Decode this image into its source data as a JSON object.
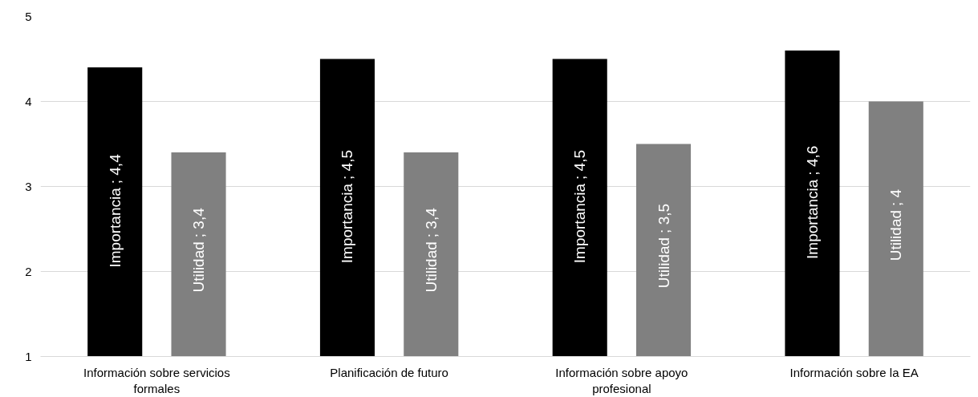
{
  "chart_data": {
    "type": "bar",
    "categories": [
      "Información sobre servicios formales",
      "Planificación de futuro",
      "Información sobre apoyo profesional",
      "Información sobre la EA"
    ],
    "series": [
      {
        "name": "Importancia",
        "color": "#000000",
        "values": [
          4.4,
          4.5,
          4.5,
          4.6
        ],
        "value_labels": [
          "; 4,4",
          "; 4,5",
          "; 4,5",
          "; 4,6"
        ]
      },
      {
        "name": "Utilidad",
        "color": "#808080",
        "values": [
          3.4,
          3.4,
          3.5,
          4
        ],
        "value_labels": [
          "; 3,4",
          "; 3,4",
          "; 3,5",
          "; 4"
        ]
      }
    ],
    "ylim": [
      1,
      5
    ],
    "yticks": [
      1,
      2,
      3,
      4,
      5
    ],
    "grid": "y",
    "legend": false
  }
}
